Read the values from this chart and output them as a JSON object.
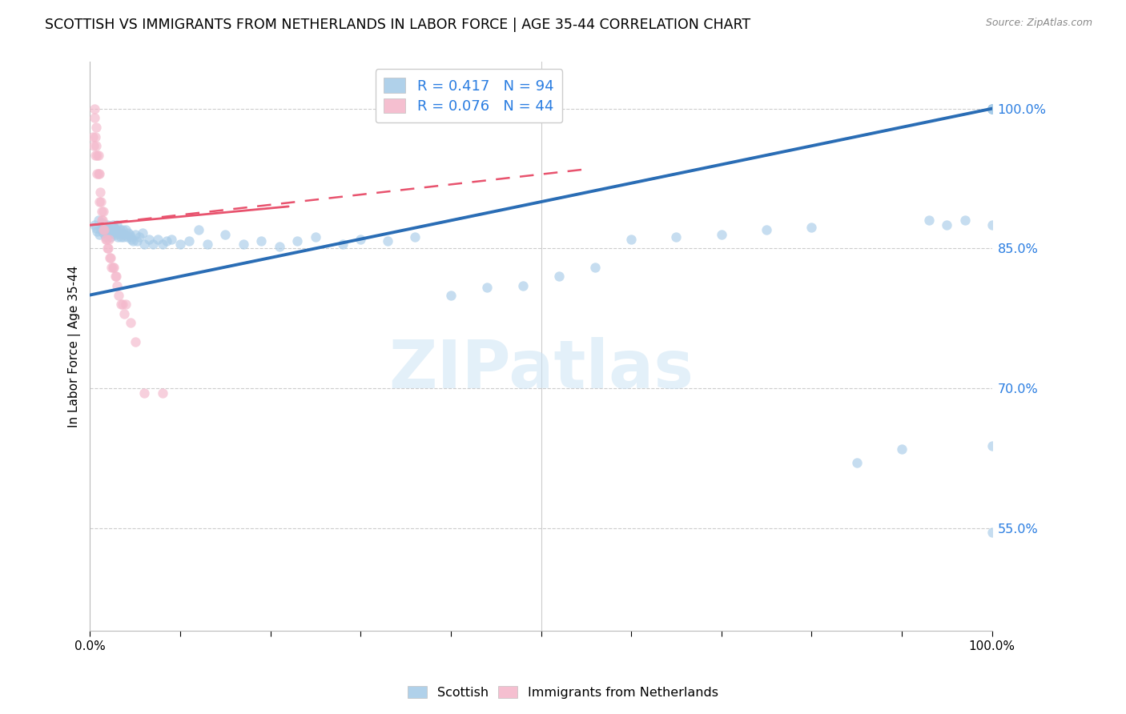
{
  "title": "SCOTTISH VS IMMIGRANTS FROM NETHERLANDS IN LABOR FORCE | AGE 35-44 CORRELATION CHART",
  "source": "Source: ZipAtlas.com",
  "ylabel": "In Labor Force | Age 35-44",
  "xlim": [
    0,
    1.0
  ],
  "ylim": [
    0.44,
    1.05
  ],
  "yticks": [
    0.55,
    0.7,
    0.85,
    1.0
  ],
  "xtick_positions": [
    0.0,
    0.1,
    0.2,
    0.3,
    0.4,
    0.5,
    0.6,
    0.7,
    0.8,
    0.9,
    1.0
  ],
  "xtick_labels": [
    "0.0%",
    "",
    "",
    "",
    "",
    "",
    "",
    "",
    "",
    "",
    "100.0%"
  ],
  "title_fontsize": 12.5,
  "watermark": "ZIPatlas",
  "blue_color": "#a8cce8",
  "pink_color": "#f4b8cb",
  "blue_line_color": "#2a6db5",
  "pink_line_color": "#e8536e",
  "scatter_alpha": 0.65,
  "scatter_size": 80,
  "blue_scatter_x": [
    0.005,
    0.007,
    0.008,
    0.009,
    0.01,
    0.012,
    0.013,
    0.015,
    0.015,
    0.016,
    0.017,
    0.018,
    0.019,
    0.02,
    0.02,
    0.021,
    0.022,
    0.023,
    0.024,
    0.025,
    0.026,
    0.027,
    0.028,
    0.029,
    0.03,
    0.031,
    0.032,
    0.033,
    0.034,
    0.035,
    0.036,
    0.037,
    0.038,
    0.04,
    0.041,
    0.042,
    0.044,
    0.045,
    0.046,
    0.048,
    0.05,
    0.052,
    0.055,
    0.058,
    0.06,
    0.065,
    0.07,
    0.075,
    0.08,
    0.085,
    0.09,
    0.1,
    0.11,
    0.12,
    0.13,
    0.15,
    0.17,
    0.19,
    0.21,
    0.23,
    0.25,
    0.28,
    0.3,
    0.33,
    0.36,
    0.4,
    0.44,
    0.48,
    0.52,
    0.56,
    0.6,
    0.65,
    0.7,
    0.75,
    0.8,
    0.85,
    0.9,
    0.93,
    0.95,
    0.97,
    1.0,
    1.0,
    1.0,
    1.0,
    1.0,
    1.0,
    1.0,
    1.0,
    1.0,
    1.0,
    1.0,
    1.0,
    1.0,
    1.0
  ],
  "blue_scatter_y": [
    0.875,
    0.872,
    0.868,
    0.88,
    0.865,
    0.87,
    0.878,
    0.873,
    0.867,
    0.875,
    0.862,
    0.87,
    0.875,
    0.868,
    0.872,
    0.865,
    0.87,
    0.862,
    0.868,
    0.875,
    0.867,
    0.872,
    0.865,
    0.87,
    0.875,
    0.862,
    0.867,
    0.87,
    0.862,
    0.867,
    0.87,
    0.862,
    0.865,
    0.87,
    0.862,
    0.867,
    0.865,
    0.862,
    0.86,
    0.858,
    0.865,
    0.858,
    0.862,
    0.867,
    0.855,
    0.86,
    0.855,
    0.86,
    0.855,
    0.858,
    0.86,
    0.855,
    0.858,
    0.87,
    0.855,
    0.865,
    0.855,
    0.858,
    0.852,
    0.858,
    0.862,
    0.855,
    0.86,
    0.858,
    0.862,
    0.8,
    0.808,
    0.81,
    0.82,
    0.83,
    0.86,
    0.862,
    0.865,
    0.87,
    0.873,
    0.62,
    0.635,
    0.88,
    0.875,
    0.88,
    1.0,
    1.0,
    1.0,
    1.0,
    1.0,
    1.0,
    1.0,
    1.0,
    1.0,
    1.0,
    1.0,
    0.875,
    0.638,
    0.545
  ],
  "pink_scatter_x": [
    0.003,
    0.004,
    0.005,
    0.005,
    0.006,
    0.006,
    0.007,
    0.007,
    0.008,
    0.008,
    0.009,
    0.009,
    0.01,
    0.01,
    0.011,
    0.012,
    0.013,
    0.013,
    0.014,
    0.015,
    0.015,
    0.016,
    0.017,
    0.018,
    0.019,
    0.02,
    0.021,
    0.022,
    0.023,
    0.024,
    0.025,
    0.026,
    0.028,
    0.029,
    0.03,
    0.032,
    0.034,
    0.036,
    0.038,
    0.04,
    0.045,
    0.05,
    0.06,
    0.08
  ],
  "pink_scatter_y": [
    0.97,
    0.96,
    0.99,
    1.0,
    0.97,
    0.95,
    0.98,
    0.96,
    0.95,
    0.93,
    0.95,
    0.93,
    0.93,
    0.9,
    0.91,
    0.9,
    0.89,
    0.88,
    0.88,
    0.89,
    0.87,
    0.87,
    0.86,
    0.86,
    0.85,
    0.85,
    0.86,
    0.84,
    0.84,
    0.83,
    0.83,
    0.83,
    0.82,
    0.82,
    0.81,
    0.8,
    0.79,
    0.79,
    0.78,
    0.79,
    0.77,
    0.75,
    0.695,
    0.695
  ],
  "blue_trend_x0": 0.0,
  "blue_trend_x1": 1.0,
  "blue_trend_y0": 0.8,
  "blue_trend_y1": 1.0,
  "pink_trend_x0": 0.0,
  "pink_trend_x1": 0.55,
  "pink_trend_y0": 0.875,
  "pink_trend_y1": 0.935
}
